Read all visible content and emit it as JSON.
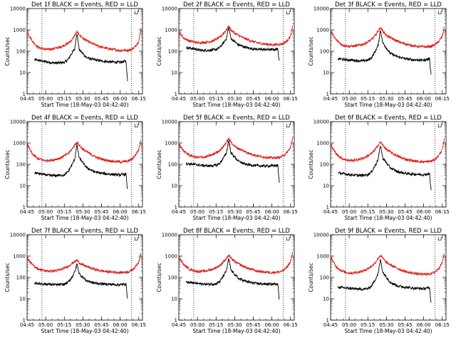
{
  "colors": {
    "black_series": "#000000",
    "red_series": "#e0201c",
    "background": "#ffffff"
  },
  "chart_data": {
    "type": "line",
    "ylog": true,
    "ylim": [
      1,
      10000
    ],
    "yticks": [
      "1",
      "10",
      "100",
      "1000",
      "10000"
    ],
    "xticks": [
      "04:45",
      "05:00",
      "05:15",
      "05:30",
      "05:45",
      "06:00",
      "06:15"
    ],
    "xtick_hours": [
      4.75,
      5.0,
      5.25,
      5.5,
      5.75,
      6.0,
      6.25
    ],
    "xlim_hours": [
      4.75,
      6.3
    ],
    "ylabel": "Counts/sec",
    "xlabel": "Start Time (18-May-03 04:42:40)",
    "marker": "⊔",
    "panels": [
      {
        "title": "Det 1f BLACK = Events, RED = LLD",
        "vlines_hours": [
          4.95,
          6.15
        ],
        "series": [
          {
            "name": "Events",
            "color": "black",
            "x": [
              4.85,
              4.95,
              5.05,
              5.15,
              5.25,
              5.3,
              5.35,
              5.39,
              5.41,
              5.42,
              5.45,
              5.55,
              5.65,
              5.75,
              5.85,
              6.0,
              6.08,
              6.09,
              6.1
            ],
            "y": [
              40,
              35,
              30,
              28,
              30,
              40,
              80,
              130,
              450,
              700,
              120,
              50,
              40,
              35,
              32,
              30,
              35,
              10,
              4
            ]
          },
          {
            "name": "LLD",
            "color": "red",
            "x": [
              4.75,
              4.82,
              4.9,
              5.0,
              5.1,
              5.2,
              5.3,
              5.35,
              5.39,
              5.42,
              5.45,
              5.5,
              5.6,
              5.7,
              5.8,
              5.9,
              6.0,
              6.1,
              6.15,
              6.2,
              6.25,
              6.28
            ],
            "y": [
              800,
              300,
              150,
              120,
              130,
              160,
              230,
              330,
              550,
              800,
              600,
              400,
              250,
              180,
              140,
              120,
              110,
              110,
              120,
              160,
              300,
              1200
            ]
          }
        ]
      },
      {
        "title": "Det 2f BLACK = Events, RED = LLD",
        "vlines_hours": [
          4.95,
          6.15
        ],
        "series": [
          {
            "name": "Events",
            "color": "black",
            "x": [
              4.85,
              4.95,
              5.05,
              5.15,
              5.25,
              5.3,
              5.35,
              5.39,
              5.41,
              5.42,
              5.45,
              5.55,
              5.65,
              5.75,
              5.85,
              6.0,
              6.08,
              6.09,
              6.1
            ],
            "y": [
              150,
              130,
              110,
              110,
              120,
              150,
              250,
              400,
              900,
              1300,
              400,
              200,
              150,
              130,
              120,
              120,
              125,
              60,
              40
            ]
          },
          {
            "name": "LLD",
            "color": "red",
            "x": [
              4.75,
              4.82,
              4.9,
              5.0,
              5.1,
              5.2,
              5.3,
              5.35,
              5.39,
              5.42,
              5.45,
              5.5,
              5.6,
              5.7,
              5.8,
              5.9,
              6.0,
              6.1,
              6.15,
              6.2,
              6.25,
              6.28
            ],
            "y": [
              800,
              400,
              300,
              250,
              260,
              300,
              450,
              700,
              1000,
              1500,
              1000,
              700,
              450,
              320,
              250,
              220,
              200,
              210,
              230,
              300,
              500,
              1500
            ]
          }
        ]
      },
      {
        "title": "Det 3f BLACK = Events, RED = LLD",
        "vlines_hours": [
          4.95,
          6.15
        ],
        "series": [
          {
            "name": "Events",
            "color": "black",
            "x": [
              4.85,
              4.95,
              5.05,
              5.15,
              5.25,
              5.3,
              5.35,
              5.39,
              5.41,
              5.42,
              5.45,
              5.55,
              5.65,
              5.75,
              5.85,
              6.0,
              6.08,
              6.09,
              6.1
            ],
            "y": [
              45,
              40,
              38,
              35,
              38,
              50,
              100,
              200,
              600,
              1000,
              250,
              80,
              55,
              45,
              40,
              38,
              45,
              15,
              8
            ]
          },
          {
            "name": "LLD",
            "color": "red",
            "x": [
              4.75,
              4.82,
              4.9,
              5.0,
              5.1,
              5.2,
              5.3,
              5.35,
              5.39,
              5.42,
              5.45,
              5.5,
              5.6,
              5.7,
              5.8,
              5.9,
              6.0,
              6.1,
              6.15,
              6.2,
              6.25,
              6.28
            ],
            "y": [
              900,
              350,
              200,
              170,
              180,
              220,
              350,
              550,
              900,
              1300,
              900,
              550,
              350,
              250,
              200,
              170,
              160,
              170,
              200,
              280,
              500,
              1500
            ]
          }
        ]
      },
      {
        "title": "Det 4f BLACK = Events, RED = LLD",
        "vlines_hours": [
          4.95,
          6.15
        ],
        "series": [
          {
            "name": "Events",
            "color": "black",
            "x": [
              4.85,
              4.95,
              5.05,
              5.15,
              5.25,
              5.3,
              5.35,
              5.39,
              5.41,
              5.42,
              5.45,
              5.55,
              5.65,
              5.75,
              5.85,
              6.0,
              6.08,
              6.09,
              6.1
            ],
            "y": [
              40,
              35,
              30,
              30,
              32,
              45,
              90,
              180,
              500,
              800,
              200,
              70,
              45,
              38,
              35,
              32,
              35,
              12,
              6
            ]
          },
          {
            "name": "LLD",
            "color": "red",
            "x": [
              4.75,
              4.82,
              4.9,
              5.0,
              5.1,
              5.2,
              5.3,
              5.35,
              5.39,
              5.42,
              5.45,
              5.5,
              5.6,
              5.7,
              5.8,
              5.9,
              6.0,
              6.1,
              6.15,
              6.2,
              6.25,
              6.28
            ],
            "y": [
              900,
              300,
              180,
              150,
              160,
              200,
              320,
              500,
              800,
              1100,
              800,
              500,
              300,
              200,
              160,
              140,
              130,
              140,
              170,
              250,
              500,
              1500
            ]
          }
        ]
      },
      {
        "title": "Det 5f BLACK = Events, RED = LLD",
        "vlines_hours": [
          4.95,
          6.15
        ],
        "series": [
          {
            "name": "Events",
            "color": "black",
            "x": [
              4.85,
              4.95,
              5.05,
              5.15,
              5.25,
              5.3,
              5.35,
              5.39,
              5.41,
              5.42,
              5.45,
              5.55,
              5.65,
              5.75,
              5.85,
              6.0,
              6.08,
              6.09,
              6.1
            ],
            "y": [
              110,
              100,
              90,
              85,
              90,
              110,
              200,
              350,
              900,
              1300,
              350,
              140,
              100,
              90,
              85,
              85,
              90,
              30,
              15
            ]
          },
          {
            "name": "LLD",
            "color": "red",
            "x": [
              4.75,
              4.82,
              4.9,
              5.0,
              5.1,
              5.2,
              5.3,
              5.35,
              5.39,
              5.42,
              5.45,
              5.5,
              5.6,
              5.7,
              5.8,
              5.9,
              6.0,
              6.1,
              6.15,
              6.2,
              6.25,
              6.28
            ],
            "y": [
              900,
              400,
              260,
              210,
              220,
              280,
              450,
              700,
              1100,
              1600,
              1100,
              700,
              450,
              320,
              250,
              220,
              200,
              210,
              250,
              350,
              600,
              1800
            ]
          }
        ]
      },
      {
        "title": "Det 6f BLACK = Events, RED = LLD",
        "vlines_hours": [
          4.95,
          6.15
        ],
        "series": [
          {
            "name": "Events",
            "color": "black",
            "x": [
              4.85,
              4.95,
              5.05,
              5.15,
              5.25,
              5.3,
              5.35,
              5.39,
              5.41,
              5.42,
              5.45,
              5.55,
              5.65,
              5.75,
              5.85,
              6.0,
              6.08,
              6.09,
              6.1
            ],
            "y": [
              40,
              35,
              32,
              30,
              33,
              45,
              90,
              180,
              500,
              800,
              200,
              70,
              45,
              38,
              35,
              33,
              36,
              12,
              6
            ]
          },
          {
            "name": "LLD",
            "color": "red",
            "x": [
              4.75,
              4.82,
              4.9,
              5.0,
              5.1,
              5.2,
              5.3,
              5.35,
              5.39,
              5.42,
              5.45,
              5.5,
              5.6,
              5.7,
              5.8,
              5.9,
              6.0,
              6.1,
              6.15,
              6.2,
              6.25,
              6.28
            ],
            "y": [
              900,
              320,
              190,
              150,
              160,
              200,
              320,
              500,
              800,
              1100,
              800,
              500,
              300,
              200,
              160,
              140,
              130,
              140,
              170,
              250,
              500,
              1500
            ]
          }
        ]
      },
      {
        "title": "Det 7f BLACK = Events, RED = LLD",
        "vlines_hours": [
          4.95,
          6.15
        ],
        "series": [
          {
            "name": "Events",
            "color": "black",
            "x": [
              4.85,
              4.95,
              5.05,
              5.15,
              5.25,
              5.3,
              5.35,
              5.39,
              5.41,
              5.42,
              5.45,
              5.55,
              5.65,
              5.75,
              5.85,
              6.0,
              6.08,
              6.09,
              6.1
            ],
            "y": [
              55,
              50,
              48,
              45,
              48,
              60,
              100,
              180,
              300,
              450,
              150,
              70,
              55,
              50,
              48,
              45,
              50,
              20,
              10
            ]
          },
          {
            "name": "LLD",
            "color": "red",
            "x": [
              4.75,
              4.82,
              4.9,
              5.0,
              5.1,
              5.2,
              5.3,
              5.35,
              5.39,
              5.42,
              5.45,
              5.5,
              5.6,
              5.7,
              5.8,
              5.9,
              6.0,
              6.1,
              6.15,
              6.2,
              6.25,
              6.28
            ],
            "y": [
              800,
              400,
              250,
              200,
              200,
              230,
              330,
              450,
              550,
              650,
              500,
              380,
              280,
              220,
              190,
              180,
              170,
              180,
              210,
              300,
              550,
              1500
            ]
          }
        ]
      },
      {
        "title": "Det 8f BLACK = Events, RED = LLD",
        "vlines_hours": [
          4.95,
          6.15
        ],
        "series": [
          {
            "name": "Events",
            "color": "black",
            "x": [
              4.85,
              4.95,
              5.05,
              5.15,
              5.25,
              5.3,
              5.35,
              5.39,
              5.41,
              5.42,
              5.45,
              5.55,
              5.65,
              5.75,
              5.85,
              6.0,
              6.08,
              6.09,
              6.1
            ],
            "y": [
              60,
              55,
              50,
              48,
              50,
              65,
              120,
              220,
              500,
              750,
              220,
              90,
              65,
              55,
              50,
              48,
              52,
              18,
              8
            ]
          },
          {
            "name": "LLD",
            "color": "red",
            "x": [
              4.75,
              4.82,
              4.9,
              5.0,
              5.1,
              5.2,
              5.3,
              5.35,
              5.39,
              5.42,
              5.45,
              5.5,
              5.6,
              5.7,
              5.8,
              5.9,
              6.0,
              6.1,
              6.15,
              6.2,
              6.25,
              6.28
            ],
            "y": [
              900,
              380,
              240,
              190,
              200,
              240,
              360,
              550,
              800,
              1100,
              800,
              550,
              350,
              250,
              200,
              180,
              170,
              180,
              210,
              300,
              550,
              1500
            ]
          }
        ]
      },
      {
        "title": "Det 9f BLACK = Events, RED = LLD",
        "vlines_hours": [
          4.95,
          6.15
        ],
        "series": [
          {
            "name": "Events",
            "color": "black",
            "x": [
              4.85,
              4.95,
              5.05,
              5.15,
              5.25,
              5.3,
              5.35,
              5.39,
              5.41,
              5.42,
              5.45,
              5.55,
              5.65,
              5.75,
              5.85,
              6.0,
              6.08,
              6.09,
              6.1
            ],
            "y": [
              35,
              32,
              30,
              28,
              30,
              40,
              80,
              160,
              450,
              700,
              180,
              60,
              40,
              35,
              32,
              30,
              33,
              12,
              6
            ]
          },
          {
            "name": "LLD",
            "color": "red",
            "x": [
              4.75,
              4.82,
              4.9,
              5.0,
              5.1,
              5.2,
              5.3,
              5.35,
              5.39,
              5.42,
              5.45,
              5.5,
              5.6,
              5.7,
              5.8,
              5.9,
              6.0,
              6.1,
              6.15,
              6.2,
              6.25,
              6.28
            ],
            "y": [
              900,
              330,
              200,
              160,
              170,
              210,
              330,
              500,
              800,
              1100,
              800,
              500,
              320,
              220,
              170,
              150,
              140,
              150,
              180,
              260,
              500,
              1500
            ]
          }
        ]
      }
    ]
  }
}
